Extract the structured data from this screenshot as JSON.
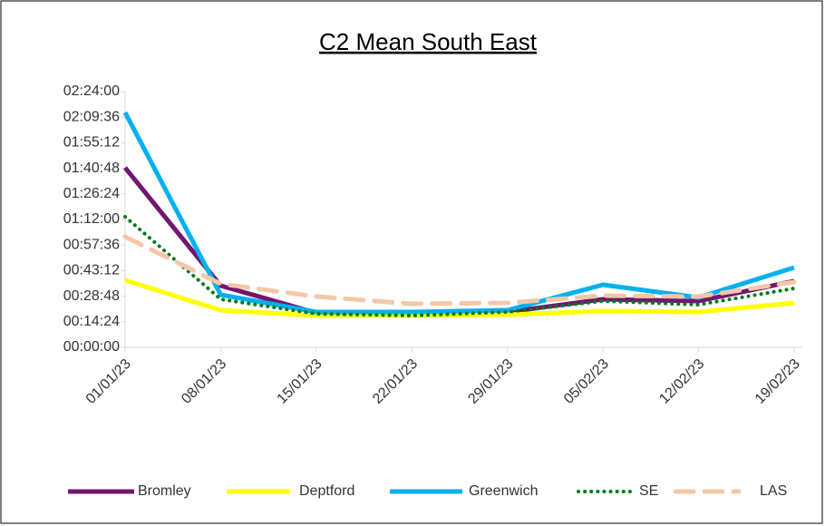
{
  "chart_data": {
    "type": "line",
    "title": "C2 Mean South East",
    "categories": [
      "01/01/23",
      "08/01/23",
      "15/01/23",
      "22/01/23",
      "29/01/23",
      "05/02/23",
      "12/02/23",
      "19/02/23"
    ],
    "series": [
      {
        "name": "Bromley",
        "color": "#72166f",
        "style": "solid",
        "values": [
          6067,
          2083,
          1164,
          1072,
          1195,
          1624,
          1563,
          2237
        ]
      },
      {
        "name": "Deptford",
        "color": "#ffff00",
        "style": "solid",
        "values": [
          2267,
          1256,
          1072,
          1072,
          1103,
          1226,
          1195,
          1501
        ]
      },
      {
        "name": "Greenwich",
        "color": "#00b0f0",
        "style": "solid",
        "values": [
          7936,
          1777,
          1195,
          1195,
          1256,
          2114,
          1685,
          2696
        ]
      },
      {
        "name": "SE",
        "color": "#007a1a",
        "style": "dotted",
        "values": [
          4412,
          1624,
          1134,
          1072,
          1195,
          1563,
          1440,
          1992
        ]
      },
      {
        "name": "LAS",
        "color": "#f4c7a8",
        "style": "dashed",
        "values": [
          3738,
          2145,
          1716,
          1471,
          1501,
          1746,
          1716,
          2206
        ]
      }
    ],
    "ylim": [
      0,
      8640
    ],
    "yticks": [
      {
        "value": 0,
        "label": "00:00:00"
      },
      {
        "value": 864,
        "label": "00:14:24"
      },
      {
        "value": 1728,
        "label": "00:28:48"
      },
      {
        "value": 2592,
        "label": "00:43:12"
      },
      {
        "value": 3456,
        "label": "00:57:36"
      },
      {
        "value": 4320,
        "label": "01:12:00"
      },
      {
        "value": 5184,
        "label": "01:26:24"
      },
      {
        "value": 6048,
        "label": "01:40:48"
      },
      {
        "value": 6912,
        "label": "01:55:12"
      },
      {
        "value": 7776,
        "label": "02:09:36"
      },
      {
        "value": 8640,
        "label": "02:24:00"
      }
    ],
    "grid": false,
    "legend": "bottom"
  }
}
